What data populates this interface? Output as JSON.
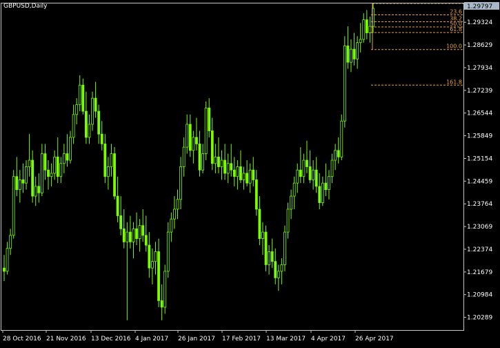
{
  "window": {
    "symbol_label": "GBPUSD,Daily",
    "current_price_label": "1.29797"
  },
  "colors": {
    "background": "#000000",
    "candle": "#7CFC00",
    "frame": "#c8c8c8",
    "text": "#ffffff",
    "fibo": "#e8a23a",
    "price_box_bg": "#a9b9c9"
  },
  "price_axis": {
    "ticks": [
      "1.29324",
      "1.28629",
      "1.27934",
      "1.27239",
      "1.26544",
      "1.25849",
      "1.25154",
      "1.24459",
      "1.23764",
      "1.23069",
      "1.22374",
      "1.21679",
      "1.20984",
      "1.20289"
    ]
  },
  "time_axis": {
    "ticks": [
      "28 Oct 2016",
      "21 Nov 2016",
      "13 Dec 2016",
      "4 Jan 2017",
      "26 Jan 2017",
      "17 Feb 2017",
      "13 Mar 2017",
      "4 Apr 2017",
      "26 Apr 2017"
    ]
  },
  "fibonacci": {
    "levels": [
      {
        "label": "23.6",
        "value": 1.2955
      },
      {
        "label": "38.2",
        "value": 1.2934
      },
      {
        "label": "50.0",
        "value": 1.2918
      },
      {
        "label": "61.8",
        "value": 1.2901
      },
      {
        "label": "100.0",
        "value": 1.2849
      },
      {
        "label": "161.8",
        "value": 1.274
      }
    ]
  },
  "chart_data": {
    "type": "candlestick",
    "symbol": "GBPUSD",
    "timeframe": "Daily",
    "ylim": [
      1.199,
      1.299
    ],
    "x": [
      "28 Oct 2016",
      "21 Nov 2016",
      "13 Dec 2016",
      "4 Jan 2017",
      "26 Jan 2017",
      "17 Feb 2017",
      "13 Mar 2017",
      "4 Apr 2017",
      "26 Apr 2017"
    ],
    "series": [
      {
        "values": [
          [
            1.218,
            1.222,
            1.214,
            1.217
          ],
          [
            1.217,
            1.226,
            1.216,
            1.224
          ],
          [
            1.224,
            1.23,
            1.222,
            1.228
          ],
          [
            1.228,
            1.248,
            1.227,
            1.246
          ],
          [
            1.246,
            1.252,
            1.24,
            1.242
          ],
          [
            1.242,
            1.248,
            1.238,
            1.245
          ],
          [
            1.245,
            1.25,
            1.241,
            1.244
          ],
          [
            1.244,
            1.251,
            1.242,
            1.249
          ],
          [
            1.249,
            1.259,
            1.246,
            1.251
          ],
          [
            1.251,
            1.254,
            1.238,
            1.24
          ],
          [
            1.24,
            1.246,
            1.237,
            1.243
          ],
          [
            1.243,
            1.247,
            1.238,
            1.241
          ],
          [
            1.241,
            1.256,
            1.24,
            1.253
          ],
          [
            1.253,
            1.256,
            1.245,
            1.248
          ],
          [
            1.248,
            1.251,
            1.242,
            1.246
          ],
          [
            1.246,
            1.25,
            1.243,
            1.247
          ],
          [
            1.247,
            1.254,
            1.245,
            1.252
          ],
          [
            1.252,
            1.258,
            1.244,
            1.246
          ],
          [
            1.246,
            1.252,
            1.244,
            1.25
          ],
          [
            1.25,
            1.256,
            1.247,
            1.253
          ],
          [
            1.253,
            1.259,
            1.249,
            1.251
          ],
          [
            1.251,
            1.26,
            1.25,
            1.258
          ],
          [
            1.258,
            1.268,
            1.256,
            1.265
          ],
          [
            1.265,
            1.27,
            1.262,
            1.268
          ],
          [
            1.268,
            1.277,
            1.266,
            1.274
          ],
          [
            1.274,
            1.276,
            1.265,
            1.266
          ],
          [
            1.266,
            1.272,
            1.256,
            1.258
          ],
          [
            1.258,
            1.265,
            1.256,
            1.262
          ],
          [
            1.262,
            1.272,
            1.26,
            1.27
          ],
          [
            1.27,
            1.275,
            1.264,
            1.266
          ],
          [
            1.266,
            1.268,
            1.256,
            1.259
          ],
          [
            1.259,
            1.263,
            1.254,
            1.256
          ],
          [
            1.256,
            1.259,
            1.244,
            1.246
          ],
          [
            1.246,
            1.252,
            1.242,
            1.249
          ],
          [
            1.249,
            1.256,
            1.246,
            1.253
          ],
          [
            1.253,
            1.255,
            1.239,
            1.24
          ],
          [
            1.24,
            1.246,
            1.232,
            1.234
          ],
          [
            1.234,
            1.24,
            1.228,
            1.23
          ],
          [
            1.23,
            1.236,
            1.224,
            1.226
          ],
          [
            1.226,
            1.232,
            1.202,
            1.229
          ],
          [
            1.229,
            1.234,
            1.224,
            1.226
          ],
          [
            1.226,
            1.232,
            1.221,
            1.23
          ],
          [
            1.23,
            1.235,
            1.225,
            1.227
          ],
          [
            1.227,
            1.233,
            1.223,
            1.231
          ],
          [
            1.231,
            1.236,
            1.226,
            1.228
          ],
          [
            1.228,
            1.234,
            1.223,
            1.225
          ],
          [
            1.225,
            1.229,
            1.215,
            1.218
          ],
          [
            1.218,
            1.224,
            1.213,
            1.22
          ],
          [
            1.22,
            1.226,
            1.216,
            1.223
          ],
          [
            1.223,
            1.227,
            1.206,
            1.208
          ],
          [
            1.208,
            1.213,
            1.202,
            1.206
          ],
          [
            1.206,
            1.219,
            1.204,
            1.217
          ],
          [
            1.217,
            1.232,
            1.215,
            1.229
          ],
          [
            1.229,
            1.235,
            1.226,
            1.233
          ],
          [
            1.233,
            1.24,
            1.23,
            1.236
          ],
          [
            1.236,
            1.242,
            1.233,
            1.239
          ],
          [
            1.239,
            1.252,
            1.236,
            1.249
          ],
          [
            1.249,
            1.258,
            1.246,
            1.255
          ],
          [
            1.255,
            1.265,
            1.253,
            1.262
          ],
          [
            1.262,
            1.265,
            1.252,
            1.254
          ],
          [
            1.254,
            1.26,
            1.25,
            1.258
          ],
          [
            1.258,
            1.264,
            1.254,
            1.256
          ],
          [
            1.256,
            1.26,
            1.246,
            1.248
          ],
          [
            1.248,
            1.256,
            1.247,
            1.253
          ],
          [
            1.253,
            1.269,
            1.251,
            1.267
          ],
          [
            1.267,
            1.27,
            1.258,
            1.26
          ],
          [
            1.26,
            1.264,
            1.248,
            1.25
          ],
          [
            1.25,
            1.256,
            1.247,
            1.252
          ],
          [
            1.252,
            1.258,
            1.247,
            1.249
          ],
          [
            1.249,
            1.254,
            1.245,
            1.251
          ],
          [
            1.251,
            1.256,
            1.245,
            1.247
          ],
          [
            1.247,
            1.253,
            1.244,
            1.25
          ],
          [
            1.25,
            1.256,
            1.246,
            1.248
          ],
          [
            1.248,
            1.252,
            1.243,
            1.246
          ],
          [
            1.246,
            1.251,
            1.242,
            1.249
          ],
          [
            1.249,
            1.254,
            1.244,
            1.245
          ],
          [
            1.245,
            1.249,
            1.242,
            1.247
          ],
          [
            1.247,
            1.251,
            1.243,
            1.244
          ],
          [
            1.244,
            1.25,
            1.241,
            1.248
          ],
          [
            1.248,
            1.252,
            1.243,
            1.245
          ],
          [
            1.245,
            1.248,
            1.234,
            1.236
          ],
          [
            1.236,
            1.24,
            1.225,
            1.227
          ],
          [
            1.227,
            1.232,
            1.222,
            1.229
          ],
          [
            1.229,
            1.231,
            1.217,
            1.219
          ],
          [
            1.219,
            1.225,
            1.216,
            1.223
          ],
          [
            1.223,
            1.227,
            1.218,
            1.22
          ],
          [
            1.22,
            1.224,
            1.213,
            1.215
          ],
          [
            1.215,
            1.219,
            1.211,
            1.217
          ],
          [
            1.217,
            1.221,
            1.213,
            1.219
          ],
          [
            1.219,
            1.231,
            1.217,
            1.229
          ],
          [
            1.229,
            1.238,
            1.227,
            1.236
          ],
          [
            1.236,
            1.242,
            1.233,
            1.24
          ],
          [
            1.24,
            1.246,
            1.236,
            1.244
          ],
          [
            1.244,
            1.25,
            1.241,
            1.248
          ],
          [
            1.248,
            1.255,
            1.244,
            1.246
          ],
          [
            1.246,
            1.253,
            1.244,
            1.251
          ],
          [
            1.251,
            1.257,
            1.247,
            1.249
          ],
          [
            1.249,
            1.254,
            1.244,
            1.245
          ],
          [
            1.245,
            1.251,
            1.242,
            1.248
          ],
          [
            1.248,
            1.252,
            1.241,
            1.243
          ],
          [
            1.243,
            1.247,
            1.236,
            1.238
          ],
          [
            1.238,
            1.246,
            1.237,
            1.244
          ],
          [
            1.244,
            1.25,
            1.24,
            1.242
          ],
          [
            1.242,
            1.248,
            1.239,
            1.246
          ],
          [
            1.246,
            1.253,
            1.244,
            1.251
          ],
          [
            1.251,
            1.256,
            1.248,
            1.254
          ],
          [
            1.254,
            1.258,
            1.25,
            1.252
          ],
          [
            1.252,
            1.265,
            1.251,
            1.263
          ],
          [
            1.263,
            1.289,
            1.261,
            1.286
          ],
          [
            1.286,
            1.292,
            1.279,
            1.281
          ],
          [
            1.281,
            1.288,
            1.278,
            1.285
          ],
          [
            1.285,
            1.29,
            1.28,
            1.282
          ],
          [
            1.282,
            1.289,
            1.279,
            1.287
          ],
          [
            1.287,
            1.293,
            1.284,
            1.288
          ],
          [
            1.288,
            1.296,
            1.287,
            1.294
          ],
          [
            1.294,
            1.297,
            1.288,
            1.29
          ],
          [
            1.29,
            1.295,
            1.287,
            1.292
          ],
          [
            1.292,
            1.299,
            1.29,
            1.2975
          ]
        ]
      }
    ]
  }
}
